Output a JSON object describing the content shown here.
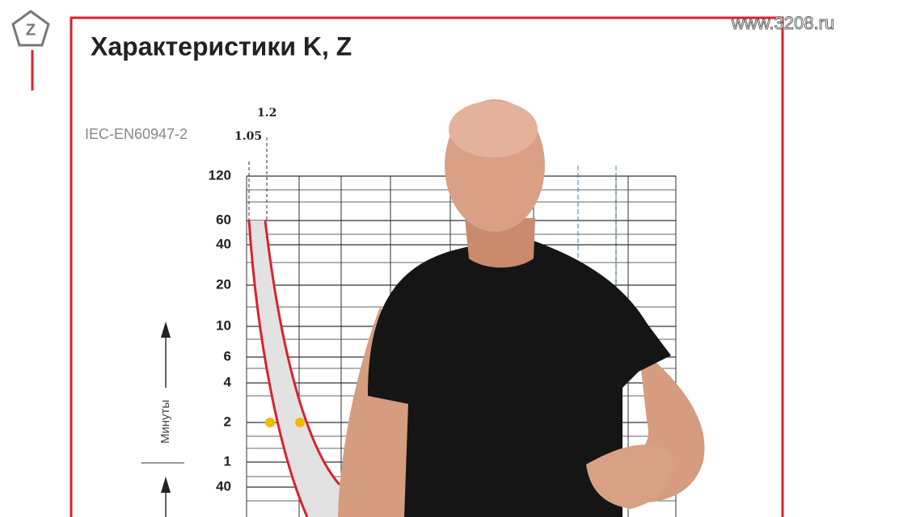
{
  "header": {
    "site": "www.3208.ru",
    "title": "Характеристики K, Z"
  },
  "diagram": {
    "standard": "IEC-EN60947-2",
    "top_labels": [
      "1.2",
      "1.05"
    ],
    "y_labels": [
      "120",
      "60",
      "40",
      "20",
      "10",
      "6",
      "4",
      "2",
      "1",
      "40"
    ],
    "axis_label": "Минуты"
  }
}
